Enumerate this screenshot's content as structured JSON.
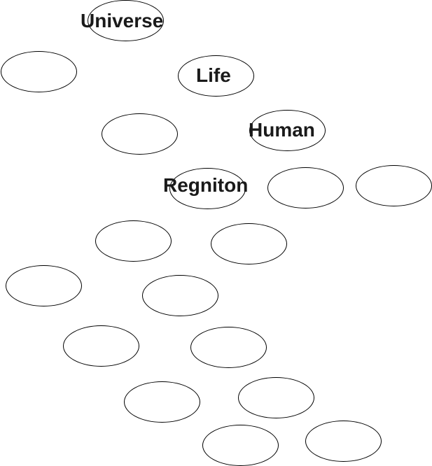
{
  "diagram": {
    "labels": {
      "universe": "Universe",
      "life": "Life",
      "human": "Human",
      "regniton": "Regniton"
    },
    "stroke_color": "#000000",
    "text_color": "#1a1a1a",
    "background_color": "#ffffff"
  }
}
